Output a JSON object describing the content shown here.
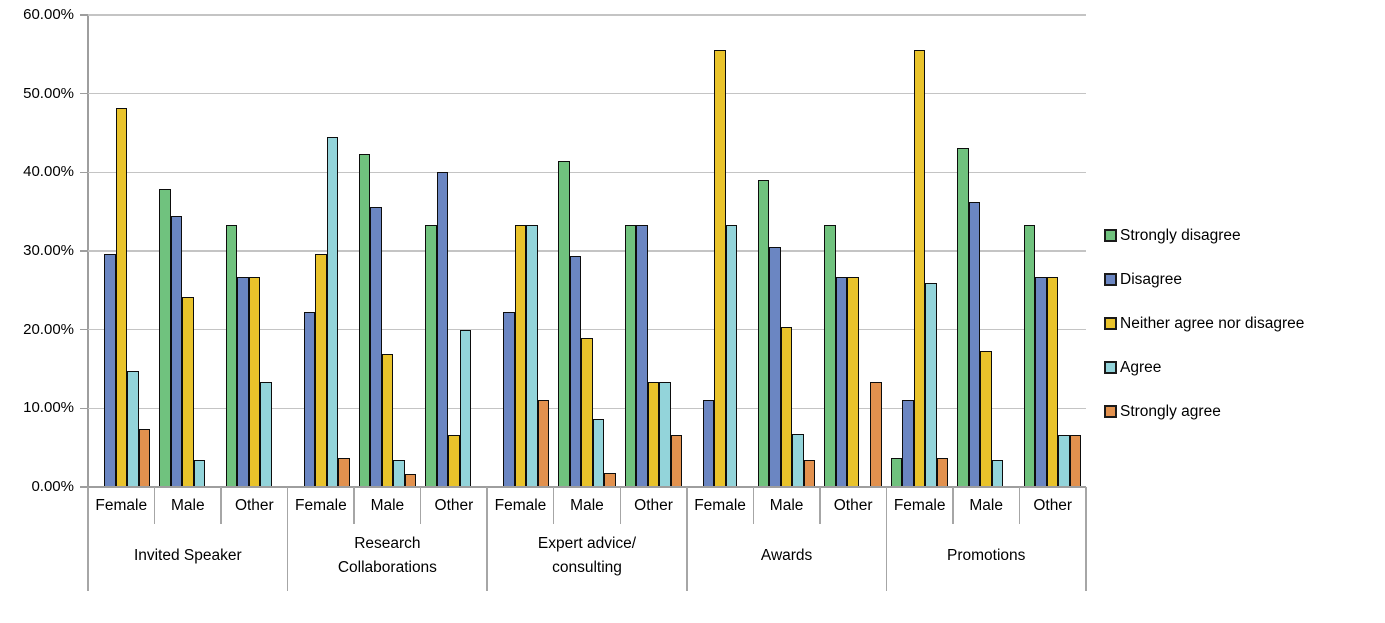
{
  "chart_data": {
    "type": "bar",
    "title": "",
    "xlabel": "",
    "ylabel": "",
    "grid": true,
    "legend_position": "right",
    "y_axis": {
      "min": 0,
      "max": 60,
      "step": 10,
      "tick_labels": [
        "0.00%",
        "10.00%",
        "20.00%",
        "30.00%",
        "40.00%",
        "50.00%",
        "60.00%"
      ]
    },
    "groups": [
      {
        "label": "Invited Speaker",
        "subgroups": [
          "Female",
          "Male",
          "Other"
        ]
      },
      {
        "label": "Research\nCollaborations",
        "subgroups": [
          "Female",
          "Male",
          "Other"
        ]
      },
      {
        "label": "Expert advice/\nconsulting",
        "subgroups": [
          "Female",
          "Male",
          "Other"
        ]
      },
      {
        "label": "Awards",
        "subgroups": [
          "Female",
          "Male",
          "Other"
        ]
      },
      {
        "label": "Promotions",
        "subgroups": [
          "Female",
          "Male",
          "Other"
        ]
      }
    ],
    "series": [
      {
        "name": "Strongly disagree",
        "color": "#70C27E",
        "values": [
          0,
          37.93,
          33.33,
          0,
          42.37,
          33.33,
          0,
          41.38,
          33.33,
          0,
          38.98,
          33.33,
          3.7,
          43.1,
          33.33
        ]
      },
      {
        "name": "Disagree",
        "color": "#6B86C2",
        "values": [
          29.63,
          34.48,
          26.67,
          22.22,
          35.59,
          40,
          22.22,
          29.31,
          33.33,
          11.11,
          30.51,
          26.67,
          11.11,
          36.21,
          26.67
        ]
      },
      {
        "name": "Neither agree nor disagree",
        "color": "#E9C32B",
        "values": [
          48.15,
          24.14,
          26.67,
          29.63,
          16.95,
          6.67,
          33.33,
          18.97,
          13.33,
          55.56,
          20.34,
          26.67,
          55.56,
          17.24,
          26.67
        ]
      },
      {
        "name": "Agree",
        "color": "#93D4DA",
        "values": [
          14.81,
          3.45,
          13.33,
          44.44,
          3.39,
          20,
          33.33,
          8.62,
          13.33,
          33.33,
          6.78,
          0,
          25.93,
          3.45,
          6.67
        ]
      },
      {
        "name": "Strongly agree",
        "color": "#E2914E",
        "values": [
          7.41,
          0,
          0,
          3.7,
          1.69,
          0,
          11.11,
          1.72,
          6.67,
          0,
          3.39,
          13.33,
          3.7,
          0,
          6.67
        ]
      }
    ],
    "colors": {
      "gridline": "#C4C4C4",
      "axis": "#9E9E9E",
      "bar_outline": "#0D0D0D",
      "text": "#000000"
    }
  }
}
